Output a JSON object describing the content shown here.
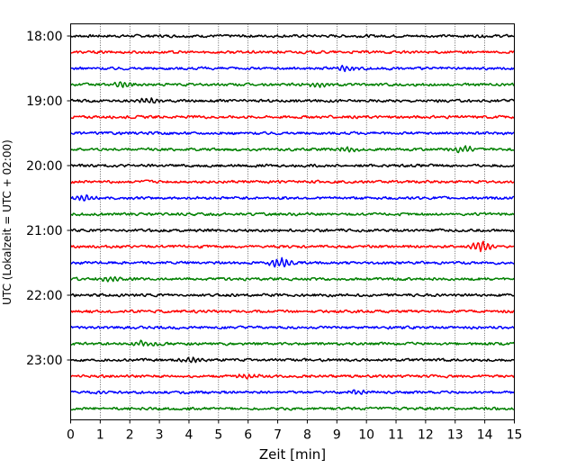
{
  "chart_data": {
    "type": "line",
    "title": "",
    "xlabel": "Zeit  [min]",
    "ylabel": "UTC (Lokalzeit = UTC + 02:00)",
    "xlim": [
      0,
      15
    ],
    "x_ticks": [
      "0",
      "1",
      "2",
      "3",
      "4",
      "5",
      "6",
      "7",
      "8",
      "9",
      "10",
      "11",
      "12",
      "13",
      "14",
      "15"
    ],
    "y_ticks": [
      "18:00",
      "19:00",
      "20:00",
      "21:00",
      "22:00",
      "23:00"
    ],
    "grid": "vertical-dotted",
    "legend": "none",
    "trace_colors": [
      "#000000",
      "#ff0000",
      "#0000ff",
      "#008000"
    ],
    "traces_per_hour": 4,
    "series": [
      {
        "start": "18:00",
        "events": []
      },
      {
        "start": "18:15",
        "events": []
      },
      {
        "start": "18:30",
        "events": [
          {
            "t": 9.3,
            "amp": 1.6
          }
        ]
      },
      {
        "start": "18:45",
        "events": [
          {
            "t": 1.8,
            "amp": 1.5
          },
          {
            "t": 8.3,
            "amp": 1.5
          }
        ]
      },
      {
        "start": "19:00",
        "events": [
          {
            "t": 2.7,
            "amp": 1.8
          }
        ]
      },
      {
        "start": "19:15",
        "events": []
      },
      {
        "start": "19:30",
        "events": []
      },
      {
        "start": "19:45",
        "events": [
          {
            "t": 9.3,
            "amp": 1.5
          },
          {
            "t": 13.3,
            "amp": 2.0
          }
        ]
      },
      {
        "start": "20:00",
        "events": []
      },
      {
        "start": "20:15",
        "events": []
      },
      {
        "start": "20:30",
        "events": [
          {
            "t": 0.5,
            "amp": 1.4
          }
        ]
      },
      {
        "start": "20:45",
        "events": []
      },
      {
        "start": "21:00",
        "events": []
      },
      {
        "start": "21:15",
        "events": [
          {
            "t": 13.9,
            "amp": 3.5
          }
        ]
      },
      {
        "start": "21:30",
        "events": [
          {
            "t": 7.1,
            "amp": 2.8
          }
        ]
      },
      {
        "start": "21:45",
        "events": [
          {
            "t": 1.3,
            "amp": 1.5
          }
        ]
      },
      {
        "start": "22:00",
        "events": []
      },
      {
        "start": "22:15",
        "events": []
      },
      {
        "start": "22:30",
        "events": []
      },
      {
        "start": "22:45",
        "events": [
          {
            "t": 2.5,
            "amp": 1.8
          }
        ]
      },
      {
        "start": "23:00",
        "events": [
          {
            "t": 4.1,
            "amp": 1.4
          }
        ]
      },
      {
        "start": "23:15",
        "events": [
          {
            "t": 6.0,
            "amp": 1.3
          }
        ]
      },
      {
        "start": "23:30",
        "events": [
          {
            "t": 9.7,
            "amp": 1.4
          }
        ]
      },
      {
        "start": "23:45",
        "events": []
      }
    ]
  }
}
